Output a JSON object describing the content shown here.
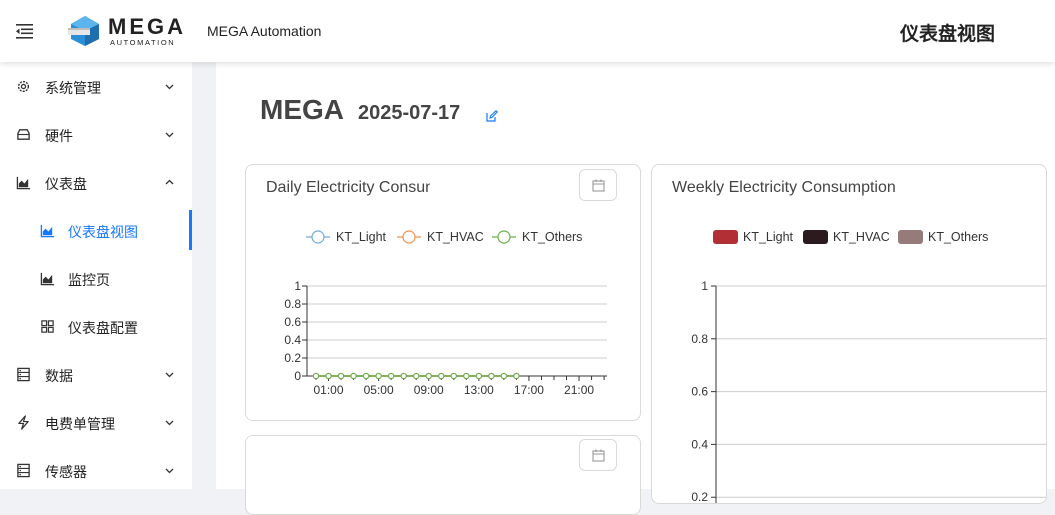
{
  "header": {
    "logo_main": "MEGA",
    "logo_sub": "AUTOMATION",
    "app_name": "MEGA Automation",
    "page_heading": "仪表盘视图",
    "menu_icon": "menu-fold-icon"
  },
  "sidebar": {
    "items": [
      {
        "label": "系统管理",
        "icon": "gear-icon",
        "expanded": false
      },
      {
        "label": "硬件",
        "icon": "hardware-icon",
        "expanded": false
      },
      {
        "label": "仪表盘",
        "icon": "area-chart-icon",
        "expanded": true
      },
      {
        "label": "仪表盘视图",
        "icon": "area-chart-icon",
        "active": true
      },
      {
        "label": "监控页",
        "icon": "area-chart-icon"
      },
      {
        "label": "仪表盘配置",
        "icon": "grid-icon"
      },
      {
        "label": "数据",
        "icon": "database-icon",
        "expanded": false
      },
      {
        "label": "电费单管理",
        "icon": "lightning-icon",
        "expanded": false
      },
      {
        "label": "传感器",
        "icon": "database-icon",
        "expanded": false
      }
    ]
  },
  "main": {
    "title": "MEGA",
    "date": "2025-07-17",
    "edit_icon": "edit-icon",
    "accent_color": "#1677ff"
  },
  "cards": {
    "daily_title": "Daily Electricity Consumption",
    "weekly_title": "Weekly Electricity Consumption",
    "calendar_icon": "calendar-icon"
  },
  "chart_data": [
    {
      "type": "line",
      "title": "Daily Electricity Consumption",
      "x": [
        "00:00",
        "01:00",
        "02:00",
        "03:00",
        "04:00",
        "05:00",
        "06:00",
        "07:00",
        "08:00",
        "09:00",
        "10:00",
        "11:00",
        "12:00",
        "13:00",
        "14:00",
        "15:00",
        "16:00"
      ],
      "x_tick_labels": [
        "01:00",
        "05:00",
        "09:00",
        "13:00",
        "17:00",
        "21:00"
      ],
      "series": [
        {
          "name": "KT_Light",
          "color": "#73a9db",
          "values": [
            0,
            0,
            0,
            0,
            0,
            0,
            0,
            0,
            0,
            0,
            0,
            0,
            0,
            0,
            0,
            0,
            0
          ]
        },
        {
          "name": "KT_HVAC",
          "color": "#f0914d",
          "values": [
            0,
            0,
            0,
            0,
            0,
            0,
            0,
            0,
            0,
            0,
            0,
            0,
            0,
            0,
            0,
            0,
            0
          ]
        },
        {
          "name": "KT_Others",
          "color": "#6ab04c",
          "values": [
            0,
            0,
            0,
            0,
            0,
            0,
            0,
            0,
            0,
            0,
            0,
            0,
            0,
            0,
            0,
            0,
            0
          ]
        }
      ],
      "y_ticks": [
        "0",
        "0.2",
        "0.4",
        "0.6",
        "0.8",
        "1"
      ],
      "ylim": [
        0,
        1
      ],
      "legend": "top-center",
      "grid": true
    },
    {
      "type": "bar",
      "title": "Weekly Electricity Consumption",
      "series": [
        {
          "name": "KT_Light",
          "color": "#b22f35"
        },
        {
          "name": "KT_HVAC",
          "color": "#2b1b1f"
        },
        {
          "name": "KT_Others",
          "color": "#957b7a"
        }
      ],
      "y_ticks": [
        "0.2",
        "0.4",
        "0.6",
        "0.8",
        "1"
      ],
      "ylim": [
        0,
        1
      ],
      "legend": "top-center",
      "grid": true
    }
  ]
}
